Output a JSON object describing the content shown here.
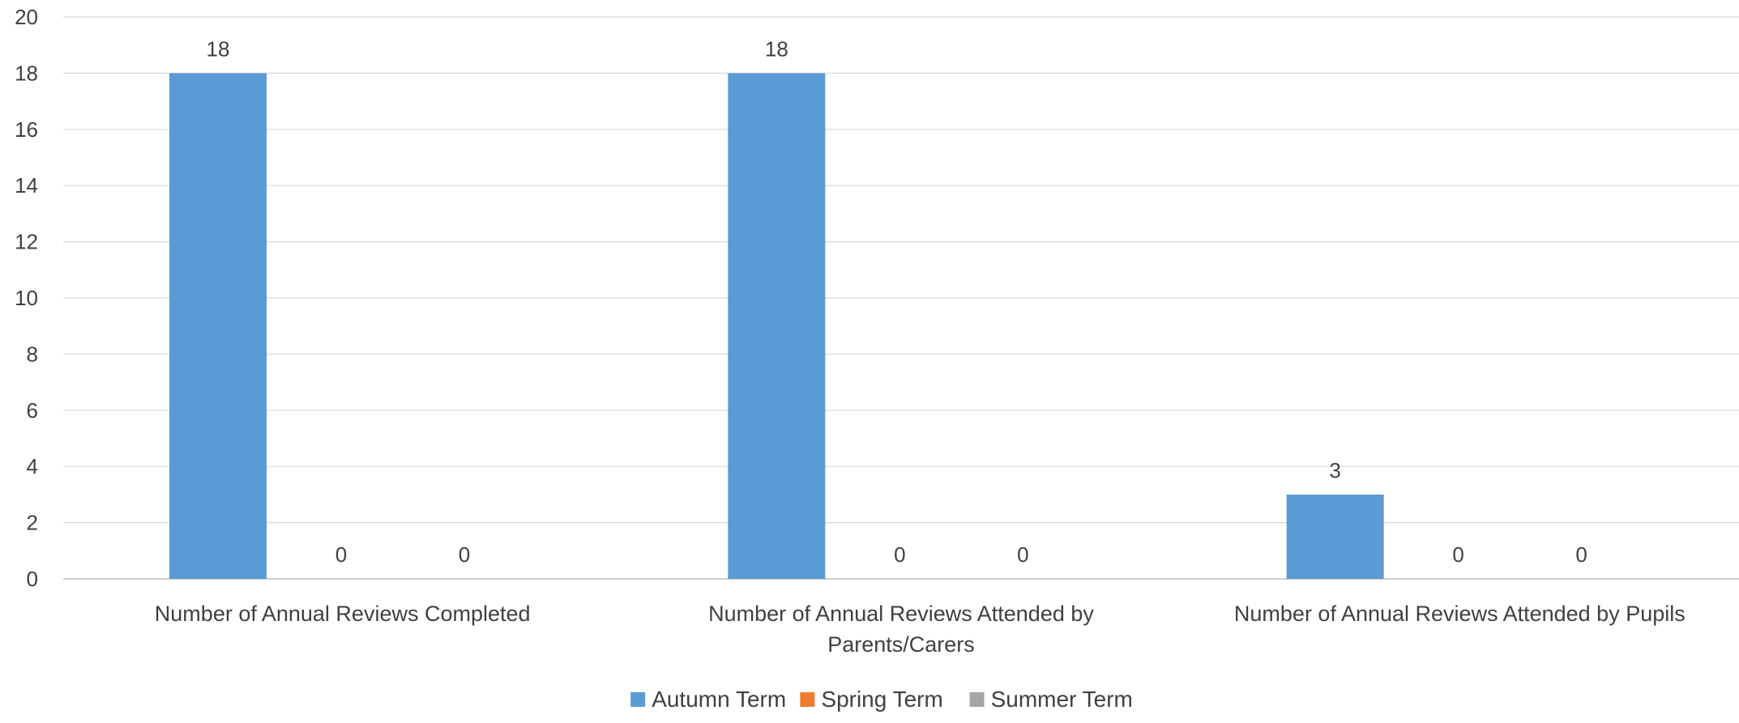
{
  "chart_data": {
    "type": "bar",
    "title": "",
    "xlabel": "",
    "ylabel": "",
    "ylim": [
      0,
      20
    ],
    "yticks": [
      0,
      2,
      4,
      6,
      8,
      10,
      12,
      14,
      16,
      18,
      20
    ],
    "grid": true,
    "legend_position": "bottom",
    "categories": [
      [
        "Number of Annual Reviews Completed"
      ],
      [
        "Number of Annual Reviews Attended by",
        "Parents/Carers"
      ],
      [
        "Number of Annual Reviews Attended by Pupils"
      ]
    ],
    "series": [
      {
        "name": "Autumn Term",
        "color": "#5B9BD5",
        "values": [
          18,
          18,
          3
        ]
      },
      {
        "name": "Spring Term",
        "color": "#ED7D31",
        "values": [
          0,
          0,
          0
        ]
      },
      {
        "name": "Summer Term",
        "color": "#A5A5A5",
        "values": [
          0,
          0,
          0
        ]
      }
    ]
  }
}
